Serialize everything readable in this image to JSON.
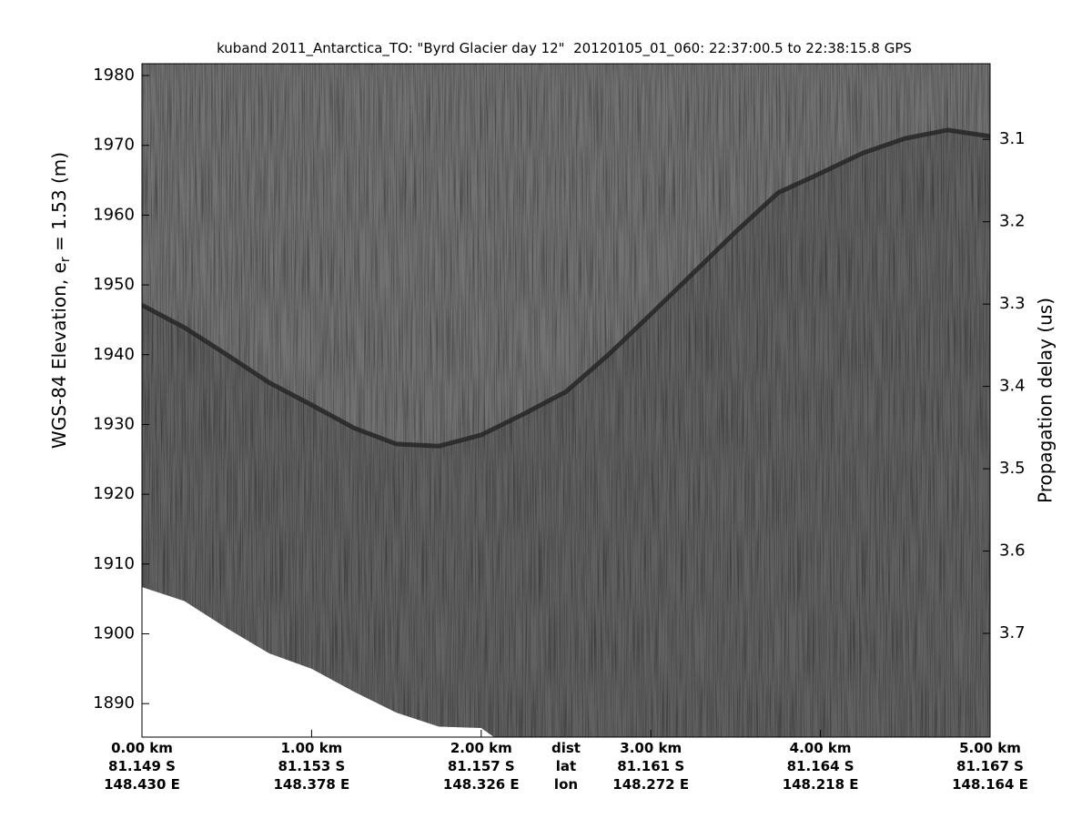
{
  "chart_data": {
    "type": "echogram",
    "title": "kuband 2011_Antarctica_TO: \"Byrd Glacier day 12\"  20120105_01_060: 22:37:00.5 to 22:38:15.8 GPS",
    "ylabel": "WGS-84 Elevation, e",
    "ylabel_subscript": "r",
    "ylabel_rest": " = 1.53 (m)",
    "y2label": "Propagation delay (us)",
    "xlim": [
      0,
      5
    ],
    "ylim": [
      1885.2,
      1981.7
    ],
    "y2lim": [
      3.826,
      3.008
    ],
    "xticks": [
      {
        "value": 0,
        "label": "0.00 km"
      },
      {
        "value": 1,
        "label": "1.00 km"
      },
      {
        "value": 2,
        "label": "2.00 km"
      },
      {
        "value": 3,
        "label": "3.00 km"
      },
      {
        "value": 4,
        "label": "4.00 km"
      },
      {
        "value": 5,
        "label": "5.00 km"
      }
    ],
    "lat_labels": [
      "81.149 S",
      "81.153 S",
      "81.157 S",
      "81.161 S",
      "81.164 S",
      "81.167 S"
    ],
    "lon_labels": [
      "148.430 E",
      "148.378 E",
      "148.326 E",
      "148.272 E",
      "148.218 E",
      "148.164 E"
    ],
    "row_labels": [
      "dist",
      "lat",
      "lon"
    ],
    "yticks": [
      1890,
      1900,
      1910,
      1920,
      1930,
      1940,
      1950,
      1960,
      1970,
      1980
    ],
    "y2ticks": [
      3.1,
      3.2,
      3.3,
      3.4,
      3.5,
      3.6,
      3.7
    ],
    "x": [
      0,
      0.25,
      0.5,
      0.75,
      1,
      1.25,
      1.5,
      1.75,
      2,
      2.25,
      2.5,
      2.75,
      3,
      3.25,
      3.5,
      3.75,
      4,
      4.25,
      4.5,
      4.75,
      5
    ],
    "surface_elevation": [
      1947.1,
      1943.9,
      1940,
      1936,
      1932.8,
      1929.5,
      1927.2,
      1926.9,
      1928.5,
      1931.5,
      1934.7,
      1940,
      1945.8,
      1951.7,
      1957.6,
      1963.2,
      1966,
      1968.9,
      1971,
      1972.2,
      1971.3
    ],
    "data_bottom": [
      1906.7,
      1904.7,
      1900.8,
      1897.2,
      1895,
      1891.7,
      1888.7,
      1886.7,
      1886.5,
      null,
      null,
      null,
      null,
      null,
      null,
      null,
      null,
      null,
      null,
      null,
      null
    ],
    "surface_color": "#262626",
    "background_color": "#737373"
  }
}
